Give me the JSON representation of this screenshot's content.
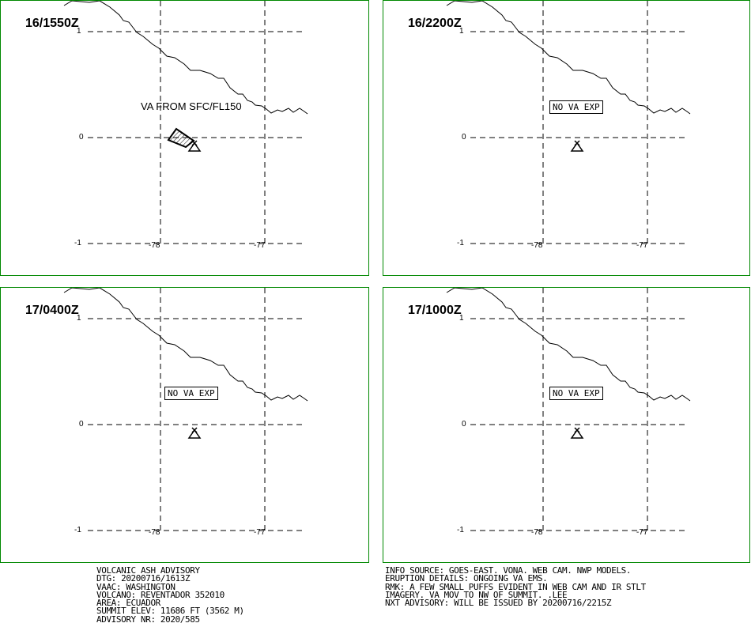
{
  "panels": [
    {
      "time": "16/1550Z",
      "label": "VA FROM SFC/FL150",
      "boxed": false
    },
    {
      "time": "16/2200Z",
      "label": "NO VA EXP",
      "boxed": true
    },
    {
      "time": "17/0400Z",
      "label": "NO VA EXP",
      "boxed": true
    },
    {
      "time": "17/1000Z",
      "label": "NO VA EXP",
      "boxed": true
    }
  ],
  "axes": {
    "lat_ticks": [
      "1",
      "0",
      "-1"
    ],
    "lon_ticks": [
      "-78",
      "-77"
    ]
  },
  "advisory_left": [
    "VOLCANIC ASH ADVISORY",
    "DTG: 20200716/1613Z",
    "VAAC: WASHINGTON",
    "VOLCANO: REVENTADOR 352010",
    "AREA: ECUADOR",
    "SUMMIT ELEV: 11686 FT (3562 M)",
    "ADVISORY NR: 2020/585"
  ],
  "advisory_right": [
    "INFO SOURCE: GOES-EAST. VONA. WEB CAM. NWP MODELS.",
    "ERUPTION DETAILS: ONGOING VA EMS.",
    "RMK: A FEW SMALL PUFFS EVIDENT IN WEB CAM AND IR STLT",
    "IMAGERY. VA MOV TO NW OF SUMMIT.  .LEE",
    "NXT ADVISORY: WILL BE ISSUED BY 20200716/2215Z"
  ],
  "colors": {
    "panel_border": "#008800",
    "lines": "#000000"
  },
  "icons": {
    "volcano": "volcano-summit-icon",
    "ash_area": "ash-cloud-polygon"
  }
}
